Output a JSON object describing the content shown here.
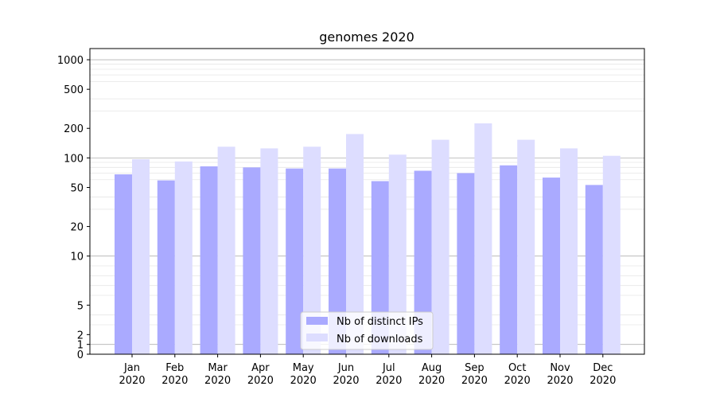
{
  "chart_data": {
    "type": "bar",
    "title": "genomes 2020",
    "xlabel": "",
    "ylabel": "",
    "y_scale": "symlog",
    "ylim": [
      0,
      1300
    ],
    "yticks": [
      0,
      1,
      2,
      5,
      10,
      20,
      50,
      100,
      200,
      500,
      1000
    ],
    "grid": "horizontal",
    "legend_position": "bottom-center",
    "categories": [
      "Jan\n2020",
      "Feb\n2020",
      "Mar\n2020",
      "Apr\n2020",
      "May\n2020",
      "Jun\n2020",
      "Jul\n2020",
      "Aug\n2020",
      "Sep\n2020",
      "Oct\n2020",
      "Nov\n2020",
      "Dec\n2020"
    ],
    "series": [
      {
        "name": "Nb of distinct IPs",
        "color": "#aaaaff",
        "values": [
          68,
          59,
          82,
          80,
          78,
          78,
          58,
          74,
          70,
          84,
          63,
          53
        ]
      },
      {
        "name": "Nb of downloads",
        "color": "#ddddff",
        "values": [
          97,
          92,
          130,
          125,
          130,
          175,
          108,
          153,
          225,
          153,
          125,
          105
        ]
      }
    ]
  }
}
